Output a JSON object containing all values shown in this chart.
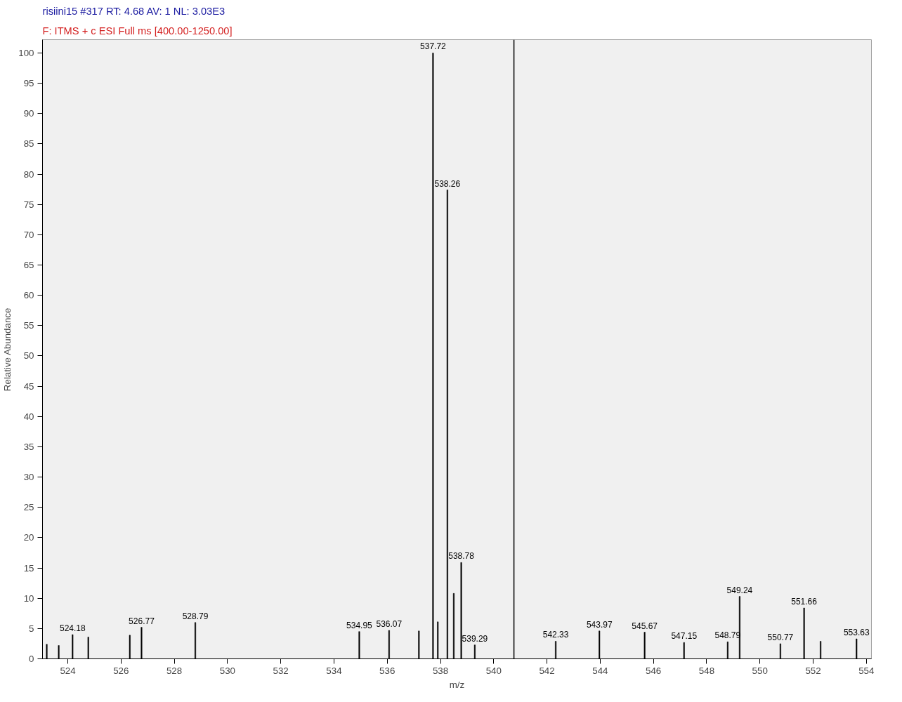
{
  "chart_data": {
    "type": "bar",
    "title": "risiini15 #317  RT: 4.68  AV: 1  NL: 3.03E3",
    "subtitle": "F: ITMS + c ESI Full ms [400.00-1250.00]",
    "xlabel": "m/z",
    "ylabel": "Relative Abundance",
    "x": [
      523.21,
      523.66,
      524.18,
      524.77,
      526.33,
      526.77,
      528.79,
      534.95,
      536.07,
      537.19,
      537.72,
      537.9,
      538.26,
      538.5,
      538.78,
      539.29,
      542.33,
      543.97,
      545.67,
      547.15,
      548.79,
      549.24,
      550.77,
      551.66,
      552.28,
      553.63
    ],
    "values": [
      2.4,
      2.2,
      4.0,
      3.6,
      3.9,
      5.2,
      6.0,
      4.5,
      4.7,
      4.6,
      100,
      6.1,
      77.4,
      10.8,
      15.9,
      2.3,
      2.9,
      4.6,
      4.4,
      2.7,
      2.8,
      10.3,
      2.5,
      8.4,
      2.9,
      3.3
    ],
    "annotations": [
      {
        "text": "524.18",
        "x": 524.18,
        "y": 4.0
      },
      {
        "text": "526.77",
        "x": 526.77,
        "y": 5.2
      },
      {
        "text": "528.79",
        "x": 528.79,
        "y": 6.0
      },
      {
        "text": "534.95",
        "x": 534.95,
        "y": 4.5
      },
      {
        "text": "536.07",
        "x": 536.07,
        "y": 4.7
      },
      {
        "text": "537.72",
        "x": 537.72,
        "y": 100
      },
      {
        "text": "538.26",
        "x": 538.26,
        "y": 77.4
      },
      {
        "text": "538.78",
        "x": 538.78,
        "y": 15.9
      },
      {
        "text": "539.29",
        "x": 539.29,
        "y": 2.3
      },
      {
        "text": "542.33",
        "x": 542.33,
        "y": 2.9
      },
      {
        "text": "543.97",
        "x": 543.97,
        "y": 4.6
      },
      {
        "text": "545.67",
        "x": 545.67,
        "y": 4.4
      },
      {
        "text": "547.15",
        "x": 547.15,
        "y": 2.7
      },
      {
        "text": "548.79",
        "x": 548.79,
        "y": 2.8
      },
      {
        "text": "549.24",
        "x": 549.24,
        "y": 10.3
      },
      {
        "text": "550.77",
        "x": 550.77,
        "y": 2.5
      },
      {
        "text": "551.66",
        "x": 551.66,
        "y": 8.4
      },
      {
        "text": "553.63",
        "x": 553.63,
        "y": 3.3
      }
    ],
    "color": "#000000",
    "xlim": [
      523.05,
      554.19
    ],
    "xticks": [
      524,
      526,
      528,
      530,
      532,
      534,
      536,
      538,
      540,
      542,
      544,
      546,
      548,
      550,
      552,
      554
    ],
    "ylim": [
      0,
      102.2
    ],
    "yticks": [
      0,
      5,
      10,
      15,
      20,
      25,
      30,
      35,
      40,
      45,
      50,
      55,
      60,
      65,
      70,
      75,
      80,
      85,
      90,
      95,
      100
    ],
    "ref_lines": [
      {
        "axis": "x",
        "value": 540.76,
        "color": "#000000"
      }
    ],
    "grid": false
  }
}
